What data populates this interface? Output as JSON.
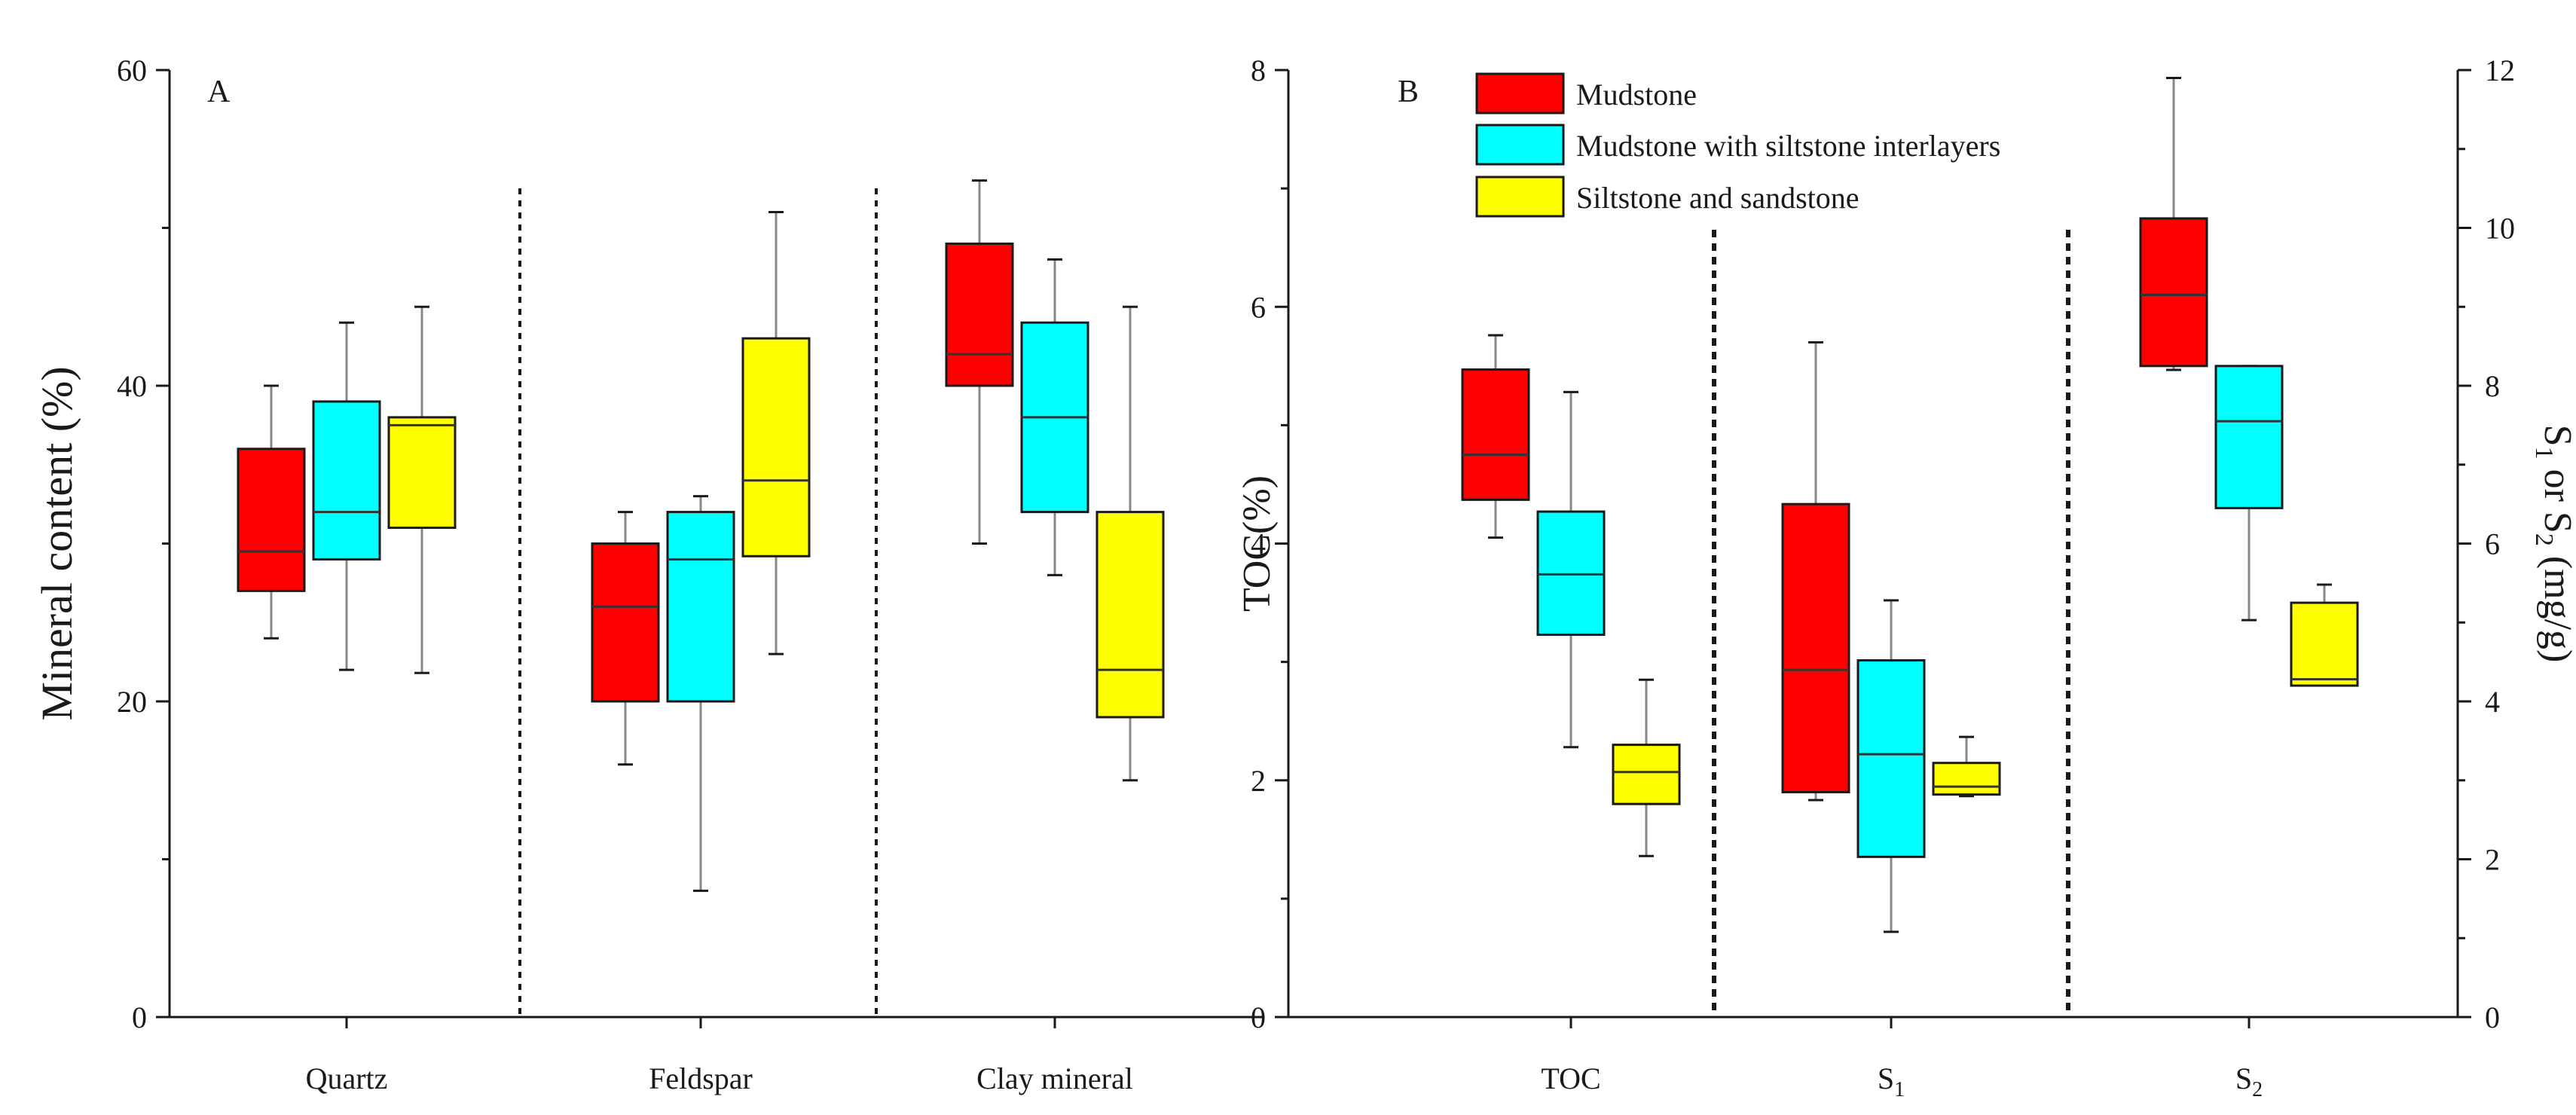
{
  "colors": {
    "mudstone": "#ff0000",
    "interlayers": "#00ffff",
    "siltstone": "#ffff00",
    "axis": "#1a1a1a"
  },
  "legend": {
    "items": [
      {
        "label": "Mudstone",
        "color": "#ff0000"
      },
      {
        "label": "Mudstone with siltstone interlayers",
        "color": "#00ffff"
      },
      {
        "label": "Siltstone and sandstone",
        "color": "#ffff00"
      }
    ]
  },
  "chart_data": [
    {
      "type": "boxplot",
      "panel_label": "A",
      "ylabel": "Mineral content (%)",
      "xlabel": "",
      "ylim": [
        0,
        60
      ],
      "y_ticks": [
        0,
        20,
        40,
        60
      ],
      "grid": false,
      "categories": [
        "Quartz",
        "Feldspar",
        "Clay mineral"
      ],
      "series": [
        {
          "name": "Mudstone",
          "color": "#ff0000",
          "boxes": [
            {
              "min": 24,
              "q1": 27,
              "median": 29.5,
              "q3": 36,
              "max": 40
            },
            {
              "min": 16,
              "q1": 20,
              "median": 26,
              "q3": 30,
              "max": 32
            },
            {
              "min": 30,
              "q1": 40,
              "median": 42,
              "q3": 49,
              "max": 53
            }
          ]
        },
        {
          "name": "Mudstone with siltstone interlayers",
          "color": "#00ffff",
          "boxes": [
            {
              "min": 22,
              "q1": 29,
              "median": 32,
              "q3": 39,
              "max": 44
            },
            {
              "min": 8,
              "q1": 20,
              "median": 29,
              "q3": 32,
              "max": 33
            },
            {
              "min": 28,
              "q1": 32,
              "median": 38,
              "q3": 44,
              "max": 48
            }
          ]
        },
        {
          "name": "Siltstone and sandstone",
          "color": "#ffff00",
          "boxes": [
            {
              "min": 21.8,
              "q1": 31,
              "median": 37.5,
              "q3": 38,
              "max": 45
            },
            {
              "min": 23,
              "q1": 29.2,
              "median": 34,
              "q3": 43,
              "max": 51
            },
            {
              "min": 15,
              "q1": 19,
              "median": 22,
              "q3": 32,
              "max": 45
            }
          ]
        }
      ]
    },
    {
      "type": "boxplot",
      "panel_label": "B",
      "ylabel": "TOC(%)",
      "y2label_parts": [
        "S",
        "1",
        " or S",
        "2",
        " (mg/g)"
      ],
      "xlabel": "",
      "ylim": [
        0,
        8
      ],
      "y_ticks": [
        0,
        2,
        4,
        6,
        8
      ],
      "y2lim": [
        0,
        12
      ],
      "y2_ticks": [
        0,
        2,
        4,
        6,
        8,
        10,
        12
      ],
      "grid": false,
      "categories": [
        {
          "main": "TOC",
          "sub": "",
          "axis": "left"
        },
        {
          "main": "S",
          "sub": "1",
          "axis": "right"
        },
        {
          "main": "S",
          "sub": "2",
          "axis": "right"
        }
      ],
      "series": [
        {
          "name": "Mudstone",
          "color": "#ff0000",
          "boxes": [
            {
              "min": 4.05,
              "q1": 4.37,
              "median": 4.75,
              "q3": 5.47,
              "max": 5.76
            },
            {
              "min": 2.75,
              "q1": 2.85,
              "median": 4.4,
              "q3": 6.5,
              "max": 8.55
            },
            {
              "min": 8.2,
              "q1": 8.25,
              "median": 9.15,
              "q3": 10.12,
              "max": 11.9
            }
          ]
        },
        {
          "name": "Mudstone with siltstone interlayers",
          "color": "#00ffff",
          "boxes": [
            {
              "min": 2.28,
              "q1": 3.23,
              "median": 3.74,
              "q3": 4.27,
              "max": 5.28
            },
            {
              "min": 1.08,
              "q1": 2.03,
              "median": 3.33,
              "q3": 4.52,
              "max": 5.28
            },
            {
              "min": 5.03,
              "q1": 6.45,
              "median": 7.55,
              "q3": 8.25,
              "max": 8.25
            }
          ]
        },
        {
          "name": "Siltstone and sandstone",
          "color": "#ffff00",
          "boxes": [
            {
              "min": 1.36,
              "q1": 1.8,
              "median": 2.07,
              "q3": 2.3,
              "max": 2.85
            },
            {
              "min": 2.8,
              "q1": 2.82,
              "median": 2.92,
              "q3": 3.22,
              "max": 3.55
            },
            {
              "min": 4.2,
              "q1": 4.2,
              "median": 4.28,
              "q3": 5.25,
              "max": 5.48
            }
          ]
        }
      ]
    }
  ]
}
